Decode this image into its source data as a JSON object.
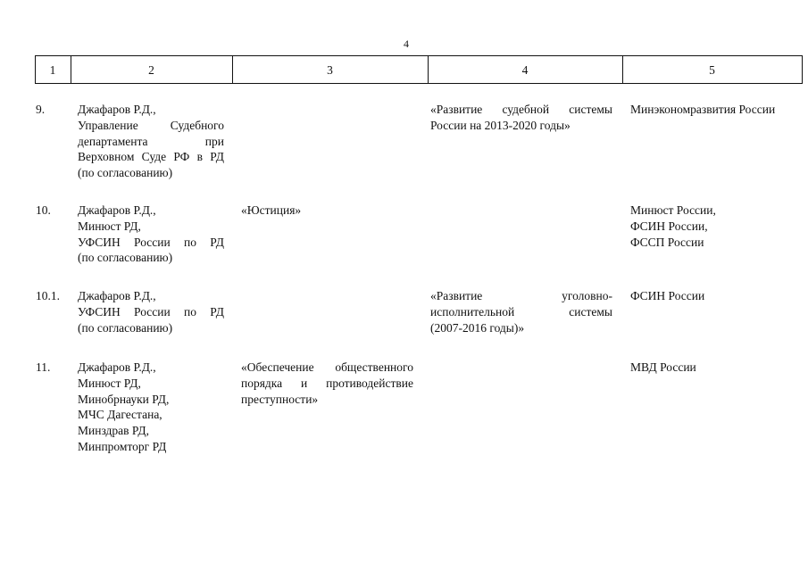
{
  "page_number": "4",
  "columns": [
    "1",
    "2",
    "3",
    "4",
    "5"
  ],
  "rows": [
    {
      "num": "9.",
      "executors": [
        "Джафаров Р.Д.,",
        "Управление Судебного",
        "департамента при",
        "Верховном Суде РФ в РД",
        "(по согласованию)"
      ],
      "program": [],
      "federal_program": [
        "«Развитие судебной системы",
        "России на 2013-2020 годы»"
      ],
      "ministry": [
        "Минэкономразвития России"
      ]
    },
    {
      "num": "10.",
      "executors": [
        "Джафаров Р.Д.,",
        "Минюст РД,",
        "УФСИН России по РД",
        "(по согласованию)"
      ],
      "program": [
        "«Юстиция»"
      ],
      "federal_program": [],
      "ministry": [
        "Минюст России,",
        "ФСИН России,",
        "ФССП России"
      ]
    },
    {
      "num": "10.1.",
      "executors": [
        "Джафаров Р.Д.,",
        "УФСИН России по РД",
        "(по согласованию)"
      ],
      "program": [],
      "federal_program": [
        "«Развитие уголовно-",
        "исполнительной системы",
        "(2007-2016 годы)»"
      ],
      "ministry": [
        "ФСИН России"
      ]
    },
    {
      "num": "11.",
      "executors": [
        "Джафаров Р.Д.,",
        "Минюст РД,",
        "Минобрнауки РД,",
        "МЧС Дагестана,",
        "Минздрав РД,",
        "Минпромторг РД"
      ],
      "program": [
        "«Обеспечение общественного",
        "порядка и противодействие",
        "преступности»"
      ],
      "federal_program": [],
      "ministry": [
        "МВД России"
      ]
    }
  ]
}
